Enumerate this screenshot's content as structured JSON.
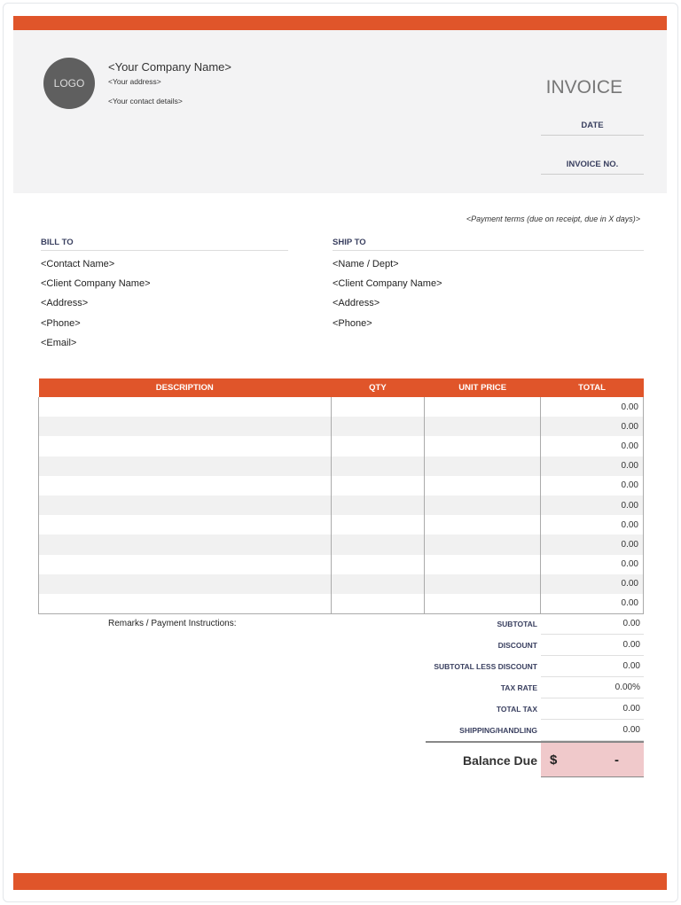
{
  "colors": {
    "accent": "#e0552a",
    "header_bg": "#f3f3f4",
    "balance_bg": "#f0c9cb"
  },
  "company": {
    "logo": "LOGO",
    "name": "<Your Company Name>",
    "address": "<Your address>",
    "contact": "<Your contact details>"
  },
  "invoice": {
    "title": "INVOICE",
    "date_label": "DATE",
    "number_label": "INVOICE NO.",
    "terms": "<Payment terms (due on receipt, due in X days)>"
  },
  "bill_to": {
    "heading": "BILL TO",
    "lines": [
      "<Contact Name>",
      "<Client Company Name>",
      "<Address>",
      "<Phone>",
      "<Email>"
    ]
  },
  "ship_to": {
    "heading": "SHIP TO",
    "lines": [
      "<Name / Dept>",
      "<Client Company Name>",
      "<Address>",
      "<Phone>"
    ]
  },
  "table": {
    "headers": [
      "DESCRIPTION",
      "QTY",
      "UNIT PRICE",
      "TOTAL"
    ],
    "totals": [
      "0.00",
      "0.00",
      "0.00",
      "0.00",
      "0.00",
      "0.00",
      "0.00",
      "0.00",
      "0.00",
      "0.00",
      "0.00"
    ]
  },
  "remarks": "Remarks / Payment Instructions:",
  "summary": [
    {
      "label": "SUBTOTAL",
      "value": "0.00"
    },
    {
      "label": "DISCOUNT",
      "value": "0.00"
    },
    {
      "label": "SUBTOTAL LESS DISCOUNT",
      "value": "0.00"
    },
    {
      "label": "TAX RATE",
      "value": "0.00%"
    },
    {
      "label": "TOTAL TAX",
      "value": "0.00"
    },
    {
      "label": "SHIPPING/HANDLING",
      "value": "0.00"
    }
  ],
  "balance": {
    "label": "Balance Due",
    "currency": "$",
    "value": "-"
  }
}
